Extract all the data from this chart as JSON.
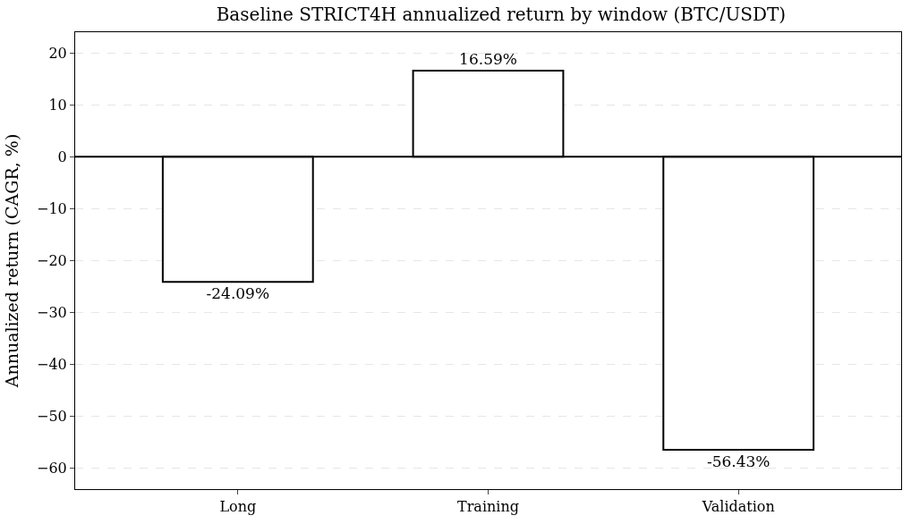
{
  "chart_data": {
    "type": "bar",
    "title": "Baseline STRICT4H annualized return by window (BTC/USDT)",
    "ylabel": "Annualized return (CAGR, %)",
    "categories": [
      "Long",
      "Training",
      "Validation"
    ],
    "values": [
      -24.09,
      16.59,
      -56.43
    ],
    "value_labels": [
      "-24.09%",
      "16.59%",
      "-56.43%"
    ],
    "color": "#ffffff",
    "ylim": [
      -64,
      24
    ],
    "yticks": [
      -60,
      -50,
      -40,
      -30,
      -20,
      -10,
      0,
      10,
      20
    ],
    "grid": "y",
    "ref_lines": [
      {
        "axis": "y",
        "value": 0,
        "color": "#000000"
      }
    ]
  }
}
